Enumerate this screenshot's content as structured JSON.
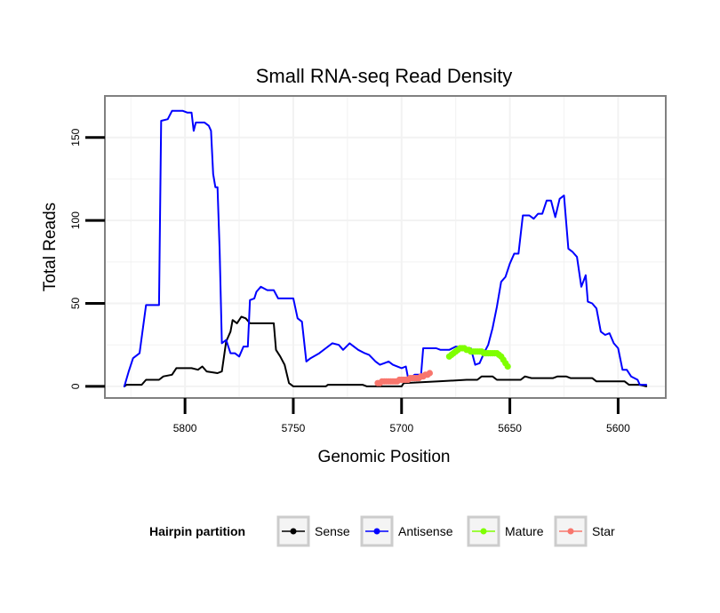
{
  "chart_data": {
    "type": "line",
    "title": "Small RNA-seq Read Density",
    "xlabel": "Genomic Position",
    "ylabel": "Total Reads",
    "xlim": [
      5837,
      5578
    ],
    "x_reversed": true,
    "ylim": [
      -7,
      175
    ],
    "x_ticks": [
      5800,
      5750,
      5700,
      5650,
      5600
    ],
    "y_ticks": [
      0,
      50,
      100,
      150
    ],
    "grid": true,
    "legend": {
      "title": "Hairpin partition",
      "position": "bottom",
      "entries": [
        "Sense",
        "Antisense",
        "Mature",
        "Star"
      ]
    },
    "series": [
      {
        "name": "Sense",
        "color": "#000000",
        "style": "line",
        "points": [
          [
            5828,
            0
          ],
          [
            5827,
            1
          ],
          [
            5820,
            1
          ],
          [
            5818,
            4
          ],
          [
            5812,
            4
          ],
          [
            5810,
            6
          ],
          [
            5806,
            7
          ],
          [
            5804,
            11
          ],
          [
            5797,
            11
          ],
          [
            5794,
            10
          ],
          [
            5792,
            12
          ],
          [
            5790,
            9
          ],
          [
            5785,
            8
          ],
          [
            5783,
            9
          ],
          [
            5781,
            27
          ],
          [
            5779,
            33
          ],
          [
            5778,
            40
          ],
          [
            5776,
            38
          ],
          [
            5774,
            42
          ],
          [
            5772,
            41
          ],
          [
            5770,
            38
          ],
          [
            5759,
            38
          ],
          [
            5758,
            22
          ],
          [
            5756,
            18
          ],
          [
            5754,
            13
          ],
          [
            5752,
            2
          ],
          [
            5750,
            0
          ],
          [
            5735,
            0
          ],
          [
            5734,
            1
          ],
          [
            5718,
            1
          ],
          [
            5716,
            0
          ],
          [
            5700,
            0
          ],
          [
            5699,
            2
          ],
          [
            5683,
            3
          ],
          [
            5670,
            4
          ],
          [
            5665,
            4
          ],
          [
            5663,
            6
          ],
          [
            5658,
            6
          ],
          [
            5656,
            4
          ],
          [
            5652,
            4
          ],
          [
            5650,
            4
          ],
          [
            5645,
            4
          ],
          [
            5643,
            6
          ],
          [
            5640,
            5
          ],
          [
            5630,
            5
          ],
          [
            5628,
            6
          ],
          [
            5624,
            6
          ],
          [
            5622,
            5
          ],
          [
            5612,
            5
          ],
          [
            5610,
            3
          ],
          [
            5597,
            3
          ],
          [
            5595,
            1
          ],
          [
            5590,
            1
          ],
          [
            5587,
            0
          ]
        ]
      },
      {
        "name": "Antisense",
        "color": "#0000ff",
        "style": "line",
        "points": [
          [
            5828,
            0
          ],
          [
            5826,
            9
          ],
          [
            5824,
            17
          ],
          [
            5821,
            20
          ],
          [
            5818,
            49
          ],
          [
            5815,
            49
          ],
          [
            5812,
            49
          ],
          [
            5811,
            160
          ],
          [
            5808,
            161
          ],
          [
            5806,
            166
          ],
          [
            5801,
            166
          ],
          [
            5799,
            165
          ],
          [
            5797,
            165
          ],
          [
            5796,
            154
          ],
          [
            5795,
            159
          ],
          [
            5791,
            159
          ],
          [
            5789,
            157
          ],
          [
            5788,
            154
          ],
          [
            5787,
            128
          ],
          [
            5786,
            120
          ],
          [
            5785,
            120
          ],
          [
            5784,
            82
          ],
          [
            5783,
            26
          ],
          [
            5781,
            28
          ],
          [
            5779,
            20
          ],
          [
            5777,
            20
          ],
          [
            5775,
            18
          ],
          [
            5773,
            24
          ],
          [
            5771,
            24
          ],
          [
            5770,
            52
          ],
          [
            5768,
            53
          ],
          [
            5767,
            57
          ],
          [
            5765,
            60
          ],
          [
            5762,
            58
          ],
          [
            5759,
            58
          ],
          [
            5757,
            53
          ],
          [
            5750,
            53
          ],
          [
            5748,
            41
          ],
          [
            5746,
            39
          ],
          [
            5744,
            15
          ],
          [
            5742,
            17
          ],
          [
            5738,
            20
          ],
          [
            5735,
            23
          ],
          [
            5732,
            26
          ],
          [
            5729,
            25
          ],
          [
            5727,
            22
          ],
          [
            5724,
            26
          ],
          [
            5720,
            22
          ],
          [
            5717,
            20
          ],
          [
            5715,
            19
          ],
          [
            5712,
            15
          ],
          [
            5710,
            13
          ],
          [
            5708,
            14
          ],
          [
            5706,
            15
          ],
          [
            5704,
            13
          ],
          [
            5700,
            11
          ],
          [
            5698,
            12
          ],
          [
            5697,
            5
          ],
          [
            5696,
            5
          ],
          [
            5694,
            7
          ],
          [
            5691,
            7
          ],
          [
            5690,
            23
          ],
          [
            5684,
            23
          ],
          [
            5682,
            22
          ],
          [
            5678,
            22
          ],
          [
            5675,
            24
          ],
          [
            5670,
            23
          ],
          [
            5668,
            23
          ],
          [
            5666,
            13
          ],
          [
            5664,
            14
          ],
          [
            5662,
            20
          ],
          [
            5660,
            25
          ],
          [
            5658,
            35
          ],
          [
            5656,
            48
          ],
          [
            5654,
            63
          ],
          [
            5652,
            66
          ],
          [
            5650,
            74
          ],
          [
            5648,
            80
          ],
          [
            5646,
            80
          ],
          [
            5644,
            103
          ],
          [
            5641,
            103
          ],
          [
            5639,
            101
          ],
          [
            5637,
            104
          ],
          [
            5635,
            104
          ],
          [
            5633,
            112
          ],
          [
            5631,
            112
          ],
          [
            5629,
            102
          ],
          [
            5627,
            113
          ],
          [
            5625,
            115
          ],
          [
            5623,
            83
          ],
          [
            5621,
            81
          ],
          [
            5619,
            78
          ],
          [
            5617,
            60
          ],
          [
            5615,
            67
          ],
          [
            5614,
            51
          ],
          [
            5612,
            50
          ],
          [
            5610,
            47
          ],
          [
            5608,
            33
          ],
          [
            5606,
            31
          ],
          [
            5604,
            32
          ],
          [
            5602,
            26
          ],
          [
            5600,
            23
          ],
          [
            5598,
            10
          ],
          [
            5596,
            10
          ],
          [
            5594,
            6
          ],
          [
            5591,
            4
          ],
          [
            5590,
            1
          ],
          [
            5587,
            1
          ]
        ]
      },
      {
        "name": "Mature",
        "color": "#7fff00",
        "style": "points",
        "points": [
          [
            5678,
            18
          ],
          [
            5677,
            19
          ],
          [
            5676,
            20
          ],
          [
            5675,
            21
          ],
          [
            5674,
            22
          ],
          [
            5673,
            23
          ],
          [
            5672,
            23
          ],
          [
            5671,
            23
          ],
          [
            5670,
            22
          ],
          [
            5669,
            22
          ],
          [
            5668,
            21
          ],
          [
            5667,
            21
          ],
          [
            5666,
            21
          ],
          [
            5665,
            21
          ],
          [
            5664,
            21
          ],
          [
            5663,
            21
          ],
          [
            5662,
            20
          ],
          [
            5661,
            20
          ],
          [
            5660,
            20
          ],
          [
            5659,
            20
          ],
          [
            5658,
            20
          ],
          [
            5657,
            20
          ],
          [
            5656,
            20
          ],
          [
            5655,
            19
          ],
          [
            5654,
            18
          ],
          [
            5653,
            16
          ],
          [
            5652,
            14
          ],
          [
            5651,
            12
          ]
        ]
      },
      {
        "name": "Star",
        "color": "#f8766d",
        "style": "points",
        "points": [
          [
            5711,
            2
          ],
          [
            5710,
            2
          ],
          [
            5709,
            3
          ],
          [
            5708,
            3
          ],
          [
            5707,
            3
          ],
          [
            5706,
            3
          ],
          [
            5705,
            3
          ],
          [
            5704,
            3
          ],
          [
            5703,
            3
          ],
          [
            5702,
            3
          ],
          [
            5701,
            4
          ],
          [
            5700,
            4
          ],
          [
            5699,
            4
          ],
          [
            5698,
            4
          ],
          [
            5697,
            4
          ],
          [
            5696,
            5
          ],
          [
            5695,
            5
          ],
          [
            5694,
            5
          ],
          [
            5693,
            5
          ],
          [
            5692,
            5
          ],
          [
            5691,
            6
          ],
          [
            5690,
            6
          ],
          [
            5689,
            7
          ],
          [
            5688,
            7
          ],
          [
            5687,
            8
          ]
        ]
      }
    ]
  }
}
